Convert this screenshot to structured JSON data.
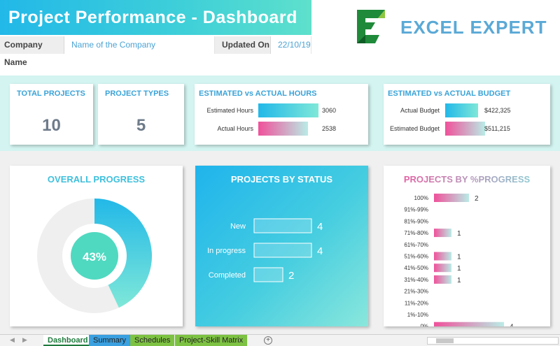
{
  "header": {
    "title": "Project Performance - Dashboard",
    "brand": "EXCEL EXPERT",
    "company_label": "Company Name",
    "company_value": "Name of the Company",
    "updated_label": "Updated On",
    "updated_value": "22/10/19"
  },
  "kpis": {
    "total_projects_label": "TOTAL PROJECTS",
    "total_projects_value": "10",
    "project_types_label": "PROJECT TYPES",
    "project_types_value": "5"
  },
  "hours": {
    "title": "ESTIMATED vs ACTUAL HOURS",
    "rows": [
      {
        "label": "Estimated Hours",
        "value": 3060,
        "display": "3060"
      },
      {
        "label": "Actual Hours",
        "value": 2538,
        "display": "2538"
      }
    ]
  },
  "budget": {
    "title": "ESTIMATED vs ACTUAL BUDGET",
    "rows": [
      {
        "label": "Actual Budget",
        "value": 422325,
        "display": "$422,325"
      },
      {
        "label": "Estimated Budget",
        "value": 511215,
        "display": "$511,215"
      }
    ]
  },
  "overall_progress": {
    "title": "OVERALL PROGRESS",
    "percent": 43,
    "display": "43%"
  },
  "status": {
    "title": "PROJECTS BY STATUS",
    "rows": [
      {
        "label": "New",
        "value": 4
      },
      {
        "label": "In progress",
        "value": 4
      },
      {
        "label": "Completed",
        "value": 2
      }
    ]
  },
  "progress_dist": {
    "title": "PROJECTS BY %PROGRESS",
    "rows": [
      {
        "label": "100%",
        "value": 2
      },
      {
        "label": "91%-99%",
        "value": 0
      },
      {
        "label": "81%-90%",
        "value": 0
      },
      {
        "label": "71%-80%",
        "value": 1
      },
      {
        "label": "61%-70%",
        "value": 0
      },
      {
        "label": "51%-60%",
        "value": 1
      },
      {
        "label": "41%-50%",
        "value": 1
      },
      {
        "label": "31%-40%",
        "value": 1
      },
      {
        "label": "21%-30%",
        "value": 0
      },
      {
        "label": "11%-20%",
        "value": 0
      },
      {
        "label": "1%-10%",
        "value": 0
      },
      {
        "label": "0%",
        "value": 4
      }
    ]
  },
  "tabs": [
    "Dashboard",
    "Summary",
    "Schedules",
    "Project-Skill Matrix"
  ],
  "colors": {
    "cyan": "#22b8e8",
    "mint": "#5ee0cc",
    "pink": "#f0509a",
    "brand_blue": "#5aa9d6",
    "logo_green": "#1f8a3a",
    "logo_lime": "#8cc63f",
    "tab_summary": "#3aa0e0",
    "tab_schedules": "#7dc242",
    "tab_matrix": "#7dc242"
  }
}
